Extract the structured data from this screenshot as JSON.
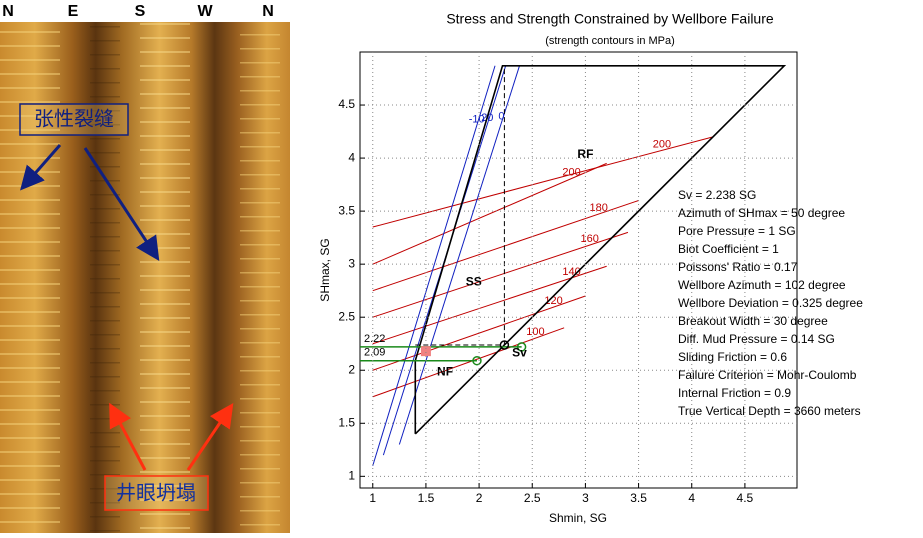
{
  "image_log": {
    "directions": [
      "N",
      "E",
      "S",
      "W",
      "N"
    ],
    "top_annotation": "张性裂缝",
    "bottom_annotation": "井眼坍塌"
  },
  "chart_data": {
    "type": "line",
    "title": "Stress and Strength Constrained by Wellbore Failure",
    "subtitle": "(strength contours in MPa)",
    "x_label": "Shmin, SG",
    "y_label": "SHmax, SG",
    "xlim": [
      0.88,
      4.99
    ],
    "ylim": [
      0.89,
      5.0
    ],
    "xticks": [
      1,
      1.5,
      2,
      2.5,
      3,
      3.5,
      4,
      4.5
    ],
    "yticks": [
      1,
      1.5,
      2,
      2.5,
      3,
      3.5,
      4,
      4.5
    ],
    "grid": true,
    "boundary": {
      "color": "#000000",
      "x": [
        1.4,
        1.4,
        2.22,
        4.87,
        1.4
      ],
      "y": [
        1.4,
        2.09,
        4.87,
        4.87,
        1.4
      ]
    },
    "sv_lines": {
      "color": "#000000",
      "x": [
        1.4,
        2.238,
        2.238
      ],
      "y": [
        2.238,
        2.238,
        4.87
      ]
    },
    "contours": [
      {
        "label": "200",
        "color": "#c00000",
        "x": [
          1.0,
          4.2
        ],
        "y": [
          3.35,
          4.2
        ]
      },
      {
        "label": "200",
        "color": "#c00000",
        "x": [
          1.0,
          3.2
        ],
        "y": [
          3.0,
          3.95
        ]
      },
      {
        "label": "180",
        "color": "#c00000",
        "x": [
          1.0,
          3.5
        ],
        "y": [
          2.75,
          3.6
        ]
      },
      {
        "label": "160",
        "color": "#c00000",
        "x": [
          1.0,
          3.4
        ],
        "y": [
          2.5,
          3.3
        ]
      },
      {
        "label": "140",
        "color": "#c00000",
        "x": [
          1.0,
          3.2
        ],
        "y": [
          2.25,
          2.98
        ]
      },
      {
        "label": "120",
        "color": "#c00000",
        "x": [
          1.0,
          3.0
        ],
        "y": [
          2.0,
          2.7
        ]
      },
      {
        "label": "100",
        "color": "#c00000",
        "x": [
          1.0,
          2.8
        ],
        "y": [
          1.75,
          2.4
        ]
      },
      {
        "label": "-10",
        "color": "#1020c0",
        "x": [
          1.0,
          2.15
        ],
        "y": [
          1.1,
          4.87
        ]
      },
      {
        "label": "20",
        "color": "#1020c0",
        "x": [
          1.1,
          2.25
        ],
        "y": [
          1.2,
          4.87
        ]
      },
      {
        "label": "0",
        "color": "#1020c0",
        "x": [
          1.25,
          2.38
        ],
        "y": [
          1.3,
          4.87
        ]
      }
    ],
    "mud_lines": [
      {
        "color": "#1a8a1a",
        "y": 2.22,
        "x_end": 2.4
      },
      {
        "color": "#1a8a1a",
        "y": 2.09,
        "x_end": 1.98
      }
    ],
    "points": [
      {
        "color": "#1a8a1a",
        "x": 2.4,
        "y": 2.22
      },
      {
        "color": "#1a8a1a",
        "x": 1.98,
        "y": 2.09
      },
      {
        "color": "#000000",
        "x": 2.238,
        "y": 2.238
      },
      {
        "color": "#f08080",
        "x": 1.5,
        "y": 2.18
      }
    ],
    "regions": [
      {
        "label": "RF",
        "x": 3.0,
        "y": 4.03
      },
      {
        "label": "SS",
        "x": 1.95,
        "y": 2.83
      },
      {
        "label": "NF",
        "x": 1.68,
        "y": 1.98
      },
      {
        "label": "Sv",
        "x": 2.38,
        "y": 2.16
      }
    ],
    "parameters": [
      "Sv = 2.238 SG",
      "Azimuth of SHmax = 50 degree",
      "Pore Pressure = 1 SG",
      "Biot Coefficient = 1",
      "Poissons' Ratio = 0.17",
      "Wellbore Azimuth = 102 degree",
      "Wellbore Deviation = 0.325 degree",
      "Breakout Width = 30 degree",
      "Diff. Mud Pressure = 0.14 SG",
      "Sliding Friction = 0.6",
      "Failure Criterion = Mohr-Coulomb",
      "Internal Friction = 0.9",
      "True Vertical Depth = 3660 meters"
    ]
  }
}
